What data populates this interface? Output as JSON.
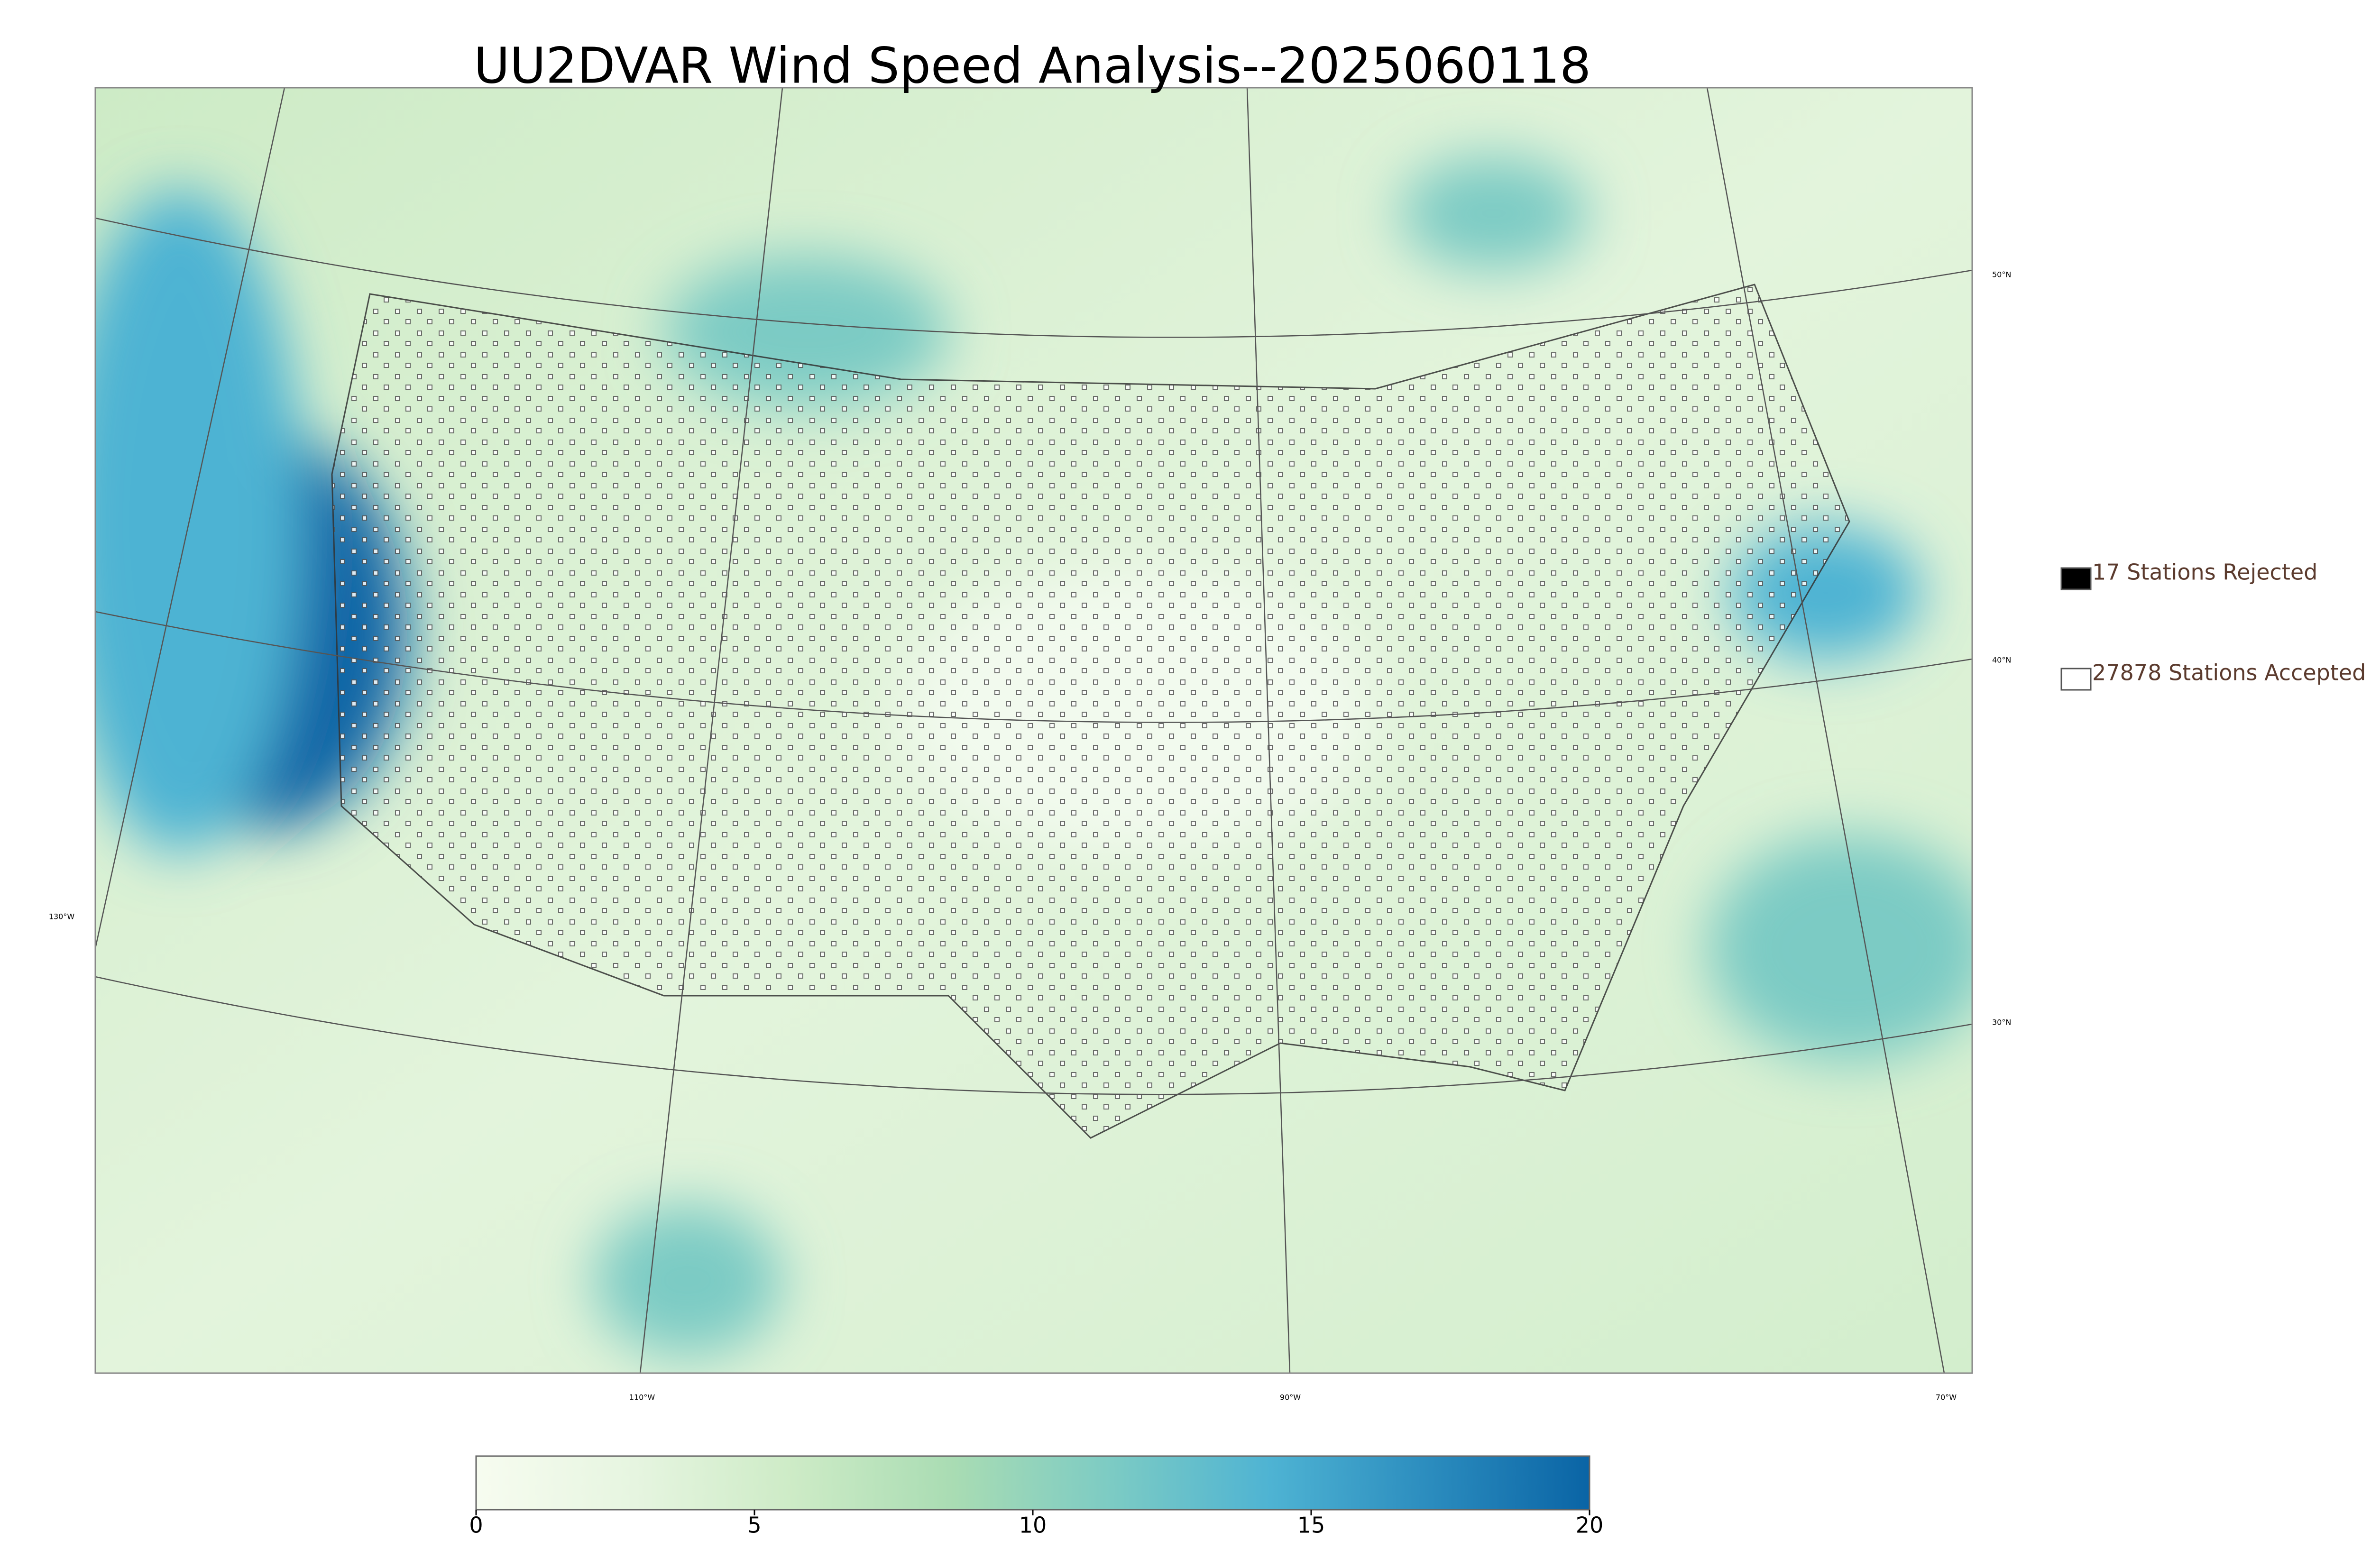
{
  "title": "UU2DVAR Wind Speed Analysis--2025060118",
  "legend": [
    {
      "label": "17 Stations Rejected",
      "color": "#000000"
    },
    {
      "label": "27878 Stations Accepted",
      "color": "#ffffff"
    }
  ],
  "colorbar": {
    "lim": [
      0,
      20
    ],
    "ticks": [
      0,
      5,
      10,
      15,
      20
    ],
    "colors": [
      "#f7fcf0",
      "#e6f5e0",
      "#cdebc6",
      "#a9dcb3",
      "#7ccbc4",
      "#4eb3d3",
      "#2b8cbe",
      "#0a64a5"
    ]
  },
  "graticule": {
    "lat_labels": [
      "50°N",
      "40°N",
      "30°N"
    ],
    "lon_labels": [
      "130°W",
      "110°W",
      "90°W",
      "70°W"
    ]
  }
}
